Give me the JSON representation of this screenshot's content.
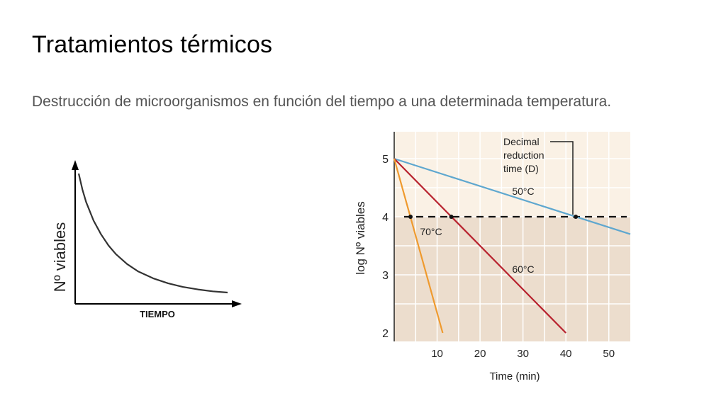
{
  "slide": {
    "title": "Tratamientos térmicos",
    "subtitle": "Destrucción de microorganismos en función del tiempo a una determinada temperatura."
  },
  "chart_data": [
    {
      "type": "line",
      "title": "",
      "xlabel": "TIEMPO",
      "ylabel": "Nº viables",
      "ticks": "none",
      "series": [
        {
          "x": [
            0,
            1,
            2,
            4,
            6,
            8,
            10,
            13,
            16,
            20,
            24,
            28,
            32,
            36,
            40
          ],
          "y": [
            1.0,
            0.87,
            0.77,
            0.62,
            0.51,
            0.42,
            0.35,
            0.27,
            0.21,
            0.155,
            0.115,
            0.085,
            0.065,
            0.05,
            0.04
          ]
        }
      ],
      "colors": {
        "curve": "#333333",
        "axes": "#000000"
      }
    },
    {
      "type": "line",
      "title": "",
      "xlabel": "Time (min)",
      "ylabel": "log Nº viables",
      "xlim": [
        0,
        55
      ],
      "ylim": [
        2,
        5.3
      ],
      "xticks": [
        10,
        20,
        30,
        40,
        50
      ],
      "yticks": [
        2,
        3,
        4,
        5
      ],
      "grid": true,
      "series": [
        {
          "name": "50°C",
          "x": [
            0,
            55
          ],
          "y": [
            5,
            3.7
          ],
          "color": "#5ea7cf"
        },
        {
          "name": "60°C",
          "x": [
            0,
            40
          ],
          "y": [
            5,
            2
          ],
          "color": "#b8232f"
        },
        {
          "name": "70°C",
          "x": [
            0,
            11.3
          ],
          "y": [
            5,
            2
          ],
          "color": "#ef9a2e"
        }
      ],
      "reference_line": {
        "y": 4,
        "style": "dashed",
        "color": "#111111"
      },
      "points": [
        {
          "series": "70°C",
          "x": 3.8,
          "y": 4
        },
        {
          "series": "60°C",
          "x": 13.3,
          "y": 4
        },
        {
          "series": "50°C",
          "x": 42.3,
          "y": 4
        }
      ],
      "annotation": {
        "text": [
          "Decimal",
          "reduction",
          "time (D)"
        ]
      },
      "colors": {
        "background": "#faf1e5",
        "shaded_region": "#ecddcd",
        "gridline": "#ffffff"
      }
    }
  ]
}
